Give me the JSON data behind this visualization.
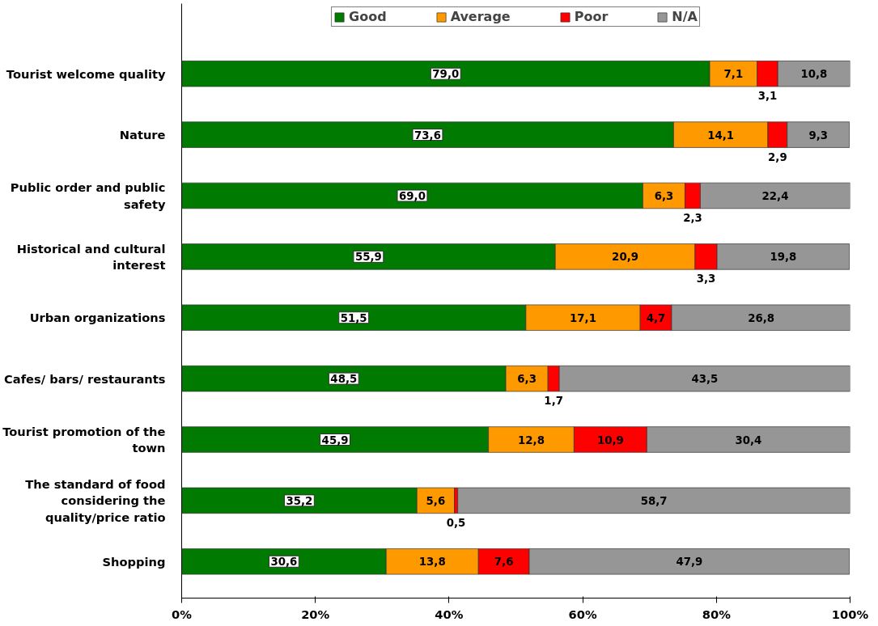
{
  "chart_data": {
    "type": "bar",
    "orientation": "horizontal",
    "stacked": true,
    "categories": [
      "Tourist welcome quality",
      "Nature",
      "Public order and public safety",
      "Historical and cultural interest",
      "Urban organizations",
      "Cafes/ bars/ restaurants",
      "Tourist promotion of the town",
      "The standard of food considering the quality/price ratio",
      "Shopping"
    ],
    "series": [
      {
        "name": "Good",
        "color": "#007a00",
        "values": [
          79.0,
          73.6,
          69.0,
          55.9,
          51.5,
          48.5,
          45.9,
          35.2,
          30.6
        ],
        "value_labels": [
          "79,0",
          "73,6",
          "69,0",
          "55,9",
          "51,5",
          "48,5",
          "45,9",
          "35,2",
          "30,6"
        ]
      },
      {
        "name": "Average",
        "color": "#ff9900",
        "values": [
          7.1,
          14.1,
          6.3,
          20.9,
          17.1,
          6.3,
          12.8,
          5.6,
          13.8
        ],
        "value_labels": [
          "7,1",
          "14,1",
          "6,3",
          "20,9",
          "17,1",
          "6,3",
          "12,8",
          "5,6",
          "13,8"
        ]
      },
      {
        "name": "Poor",
        "color": "#ff0000",
        "values": [
          3.1,
          2.9,
          2.3,
          3.3,
          4.7,
          1.7,
          10.9,
          0.5,
          7.6
        ],
        "value_labels": [
          "3,1",
          "2,9",
          "2,3",
          "3,3",
          "4,7",
          "1,7",
          "10,9",
          "0,5",
          "7,6"
        ]
      },
      {
        "name": "N/A",
        "color": "#969696",
        "values": [
          10.8,
          9.3,
          22.4,
          19.8,
          26.8,
          43.5,
          30.4,
          58.7,
          47.9
        ],
        "value_labels": [
          "10,8",
          "9,3",
          "22,4",
          "19,8",
          "26,8",
          "43,5",
          "30,4",
          "58,7",
          "47,9"
        ]
      }
    ],
    "xlim": [
      0,
      100
    ],
    "xticks": [
      {
        "value": 0,
        "label": "0%"
      },
      {
        "value": 20,
        "label": "20%"
      },
      {
        "value": 40,
        "label": "40%"
      },
      {
        "value": 60,
        "label": "60%"
      },
      {
        "value": 80,
        "label": "80%"
      },
      {
        "value": 100,
        "label": "100%"
      }
    ],
    "grid": false,
    "legend": "top"
  }
}
